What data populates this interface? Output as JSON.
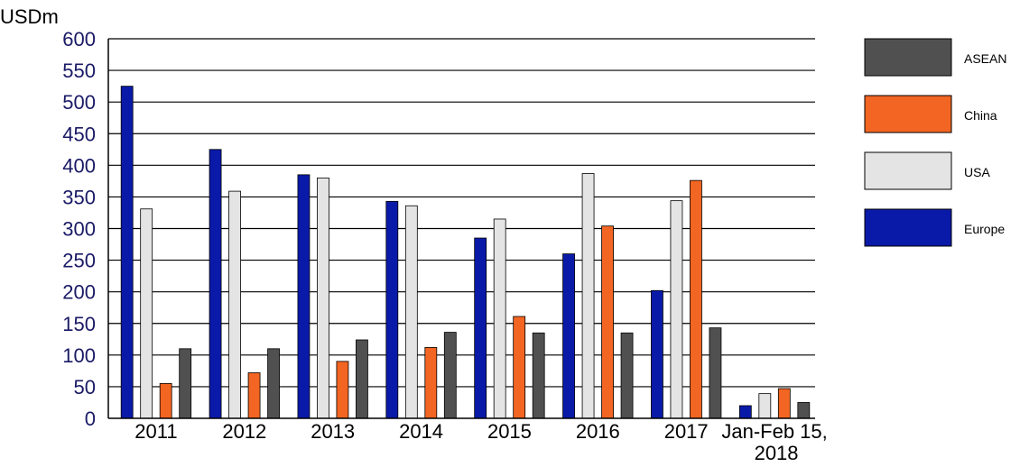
{
  "chart_data": {
    "type": "bar",
    "ylabel": "USDm",
    "ylim": [
      0,
      600
    ],
    "yticks": [
      0,
      50,
      100,
      150,
      200,
      250,
      300,
      350,
      400,
      450,
      500,
      550,
      600
    ],
    "categories": [
      "2011",
      "2012",
      "2013",
      "2014",
      "2015",
      "2016",
      "2017",
      "Jan-Feb 15,\n2018"
    ],
    "grid": true,
    "legend_position": "right",
    "series": [
      {
        "name": "Europe",
        "color": "#0a1aa8",
        "values": [
          525,
          425,
          385,
          343,
          285,
          260,
          202,
          20
        ]
      },
      {
        "name": "USA",
        "color": "#e4e4e4",
        "values": [
          331,
          359,
          380,
          336,
          315,
          387,
          344,
          39
        ]
      },
      {
        "name": "China",
        "color": "#f26522",
        "values": [
          55,
          72,
          90,
          112,
          161,
          304,
          376,
          47
        ]
      },
      {
        "name": "ASEAN",
        "color": "#505050",
        "values": [
          110,
          110,
          124,
          136,
          135,
          135,
          143,
          25
        ]
      }
    ],
    "legend_order": [
      "ASEAN",
      "China",
      "USA",
      "Europe"
    ]
  }
}
